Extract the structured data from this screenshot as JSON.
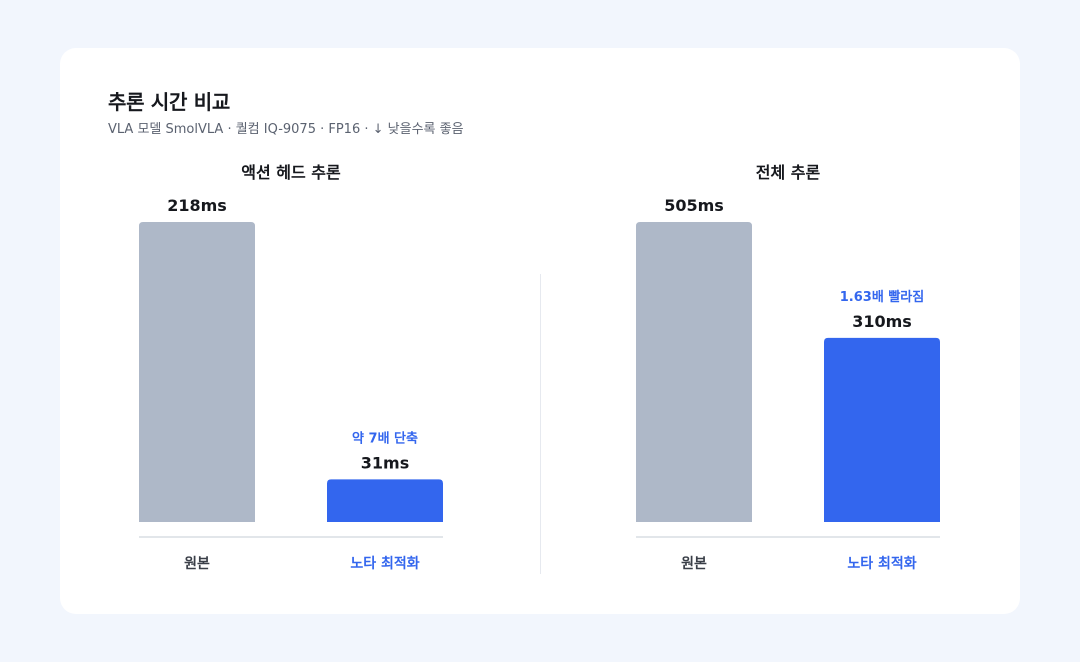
{
  "colors": {
    "baseline": "#aeb8c8",
    "optimized": "#3366ee",
    "text": "#16181d",
    "muted": "#5b6270",
    "axis": "#d9dde4"
  },
  "header": {
    "title": "추론 시간 비교",
    "subtitle": "VLA 모델 SmolVLA · 퀄컴 IQ-9075 · FP16 · ↓ 낮을수록 좋음"
  },
  "chart_data": [
    {
      "type": "bar",
      "title": "액션 헤드 추론",
      "categories": [
        "원본",
        "노타 최적화"
      ],
      "values": [
        218,
        31
      ],
      "value_labels": [
        "218ms",
        "31ms"
      ],
      "annotations": [
        "",
        "약 7배 단축"
      ],
      "ylim": [
        0,
        218
      ],
      "grid": false,
      "legend": "none"
    },
    {
      "type": "bar",
      "title": "전체 추론",
      "categories": [
        "원본",
        "노타 최적화"
      ],
      "values": [
        505,
        310
      ],
      "value_labels": [
        "505ms",
        "310ms"
      ],
      "annotations": [
        "",
        "1.63배 빨라짐"
      ],
      "ylim": [
        0,
        505
      ],
      "grid": false,
      "legend": "none"
    }
  ]
}
